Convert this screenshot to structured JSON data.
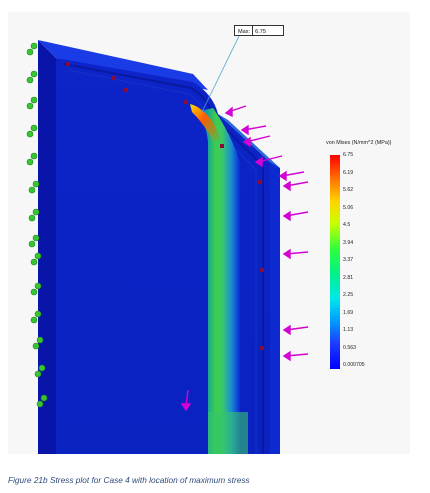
{
  "max_marker": {
    "label": "Max:",
    "value": "6.75"
  },
  "legend": {
    "title": "von Mises (N/mm^2 (MPa))",
    "ticks": [
      "6.75",
      "6.19",
      "5.62",
      "5.06",
      "4.5",
      "3.94",
      "3.37",
      "2.81",
      "2.25",
      "1.69",
      "1.13",
      "0.563",
      "0.000705"
    ]
  },
  "colors": {
    "low": "#0000ff",
    "high": "#ff0000",
    "fixture": "#39c433",
    "load_arrow": "#d400d4"
  },
  "caption": "Figure 21b Stress plot for Case 4 with location of maximum stress"
}
